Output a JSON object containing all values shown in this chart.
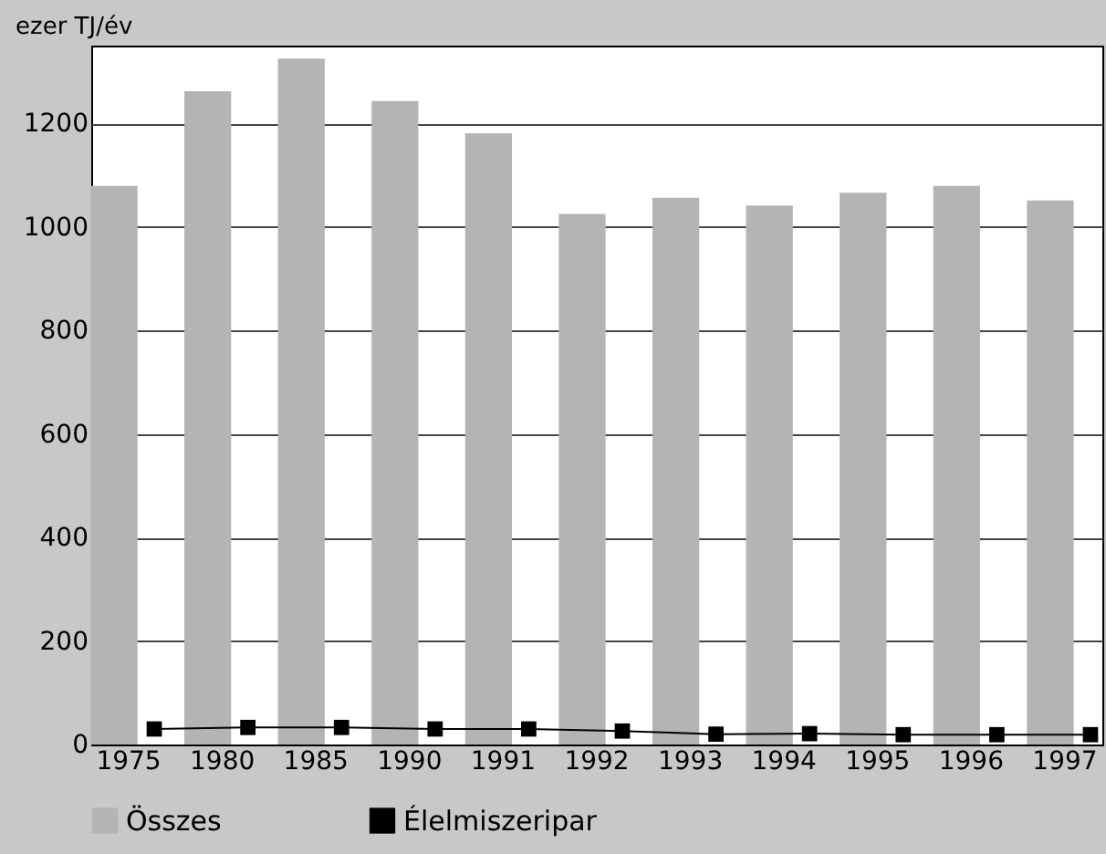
{
  "chart_data": {
    "type": "bar",
    "ylabel": "ezer TJ/év",
    "categories": [
      "1975",
      "1980",
      "1985",
      "1990",
      "1991",
      "1992",
      "1993",
      "1994",
      "1995",
      "1996",
      "1997"
    ],
    "series": [
      {
        "name": "Összes",
        "color": "#b4b4b4",
        "values": [
          1079,
          1262,
          1325,
          1243,
          1181,
          1025,
          1056,
          1041,
          1066,
          1079,
          1051
        ]
      },
      {
        "name": "Élelmiszeripar",
        "type": "line",
        "color": "#000000",
        "values": [
          30,
          33,
          33,
          30,
          30,
          26,
          20,
          21,
          19,
          19,
          19
        ]
      }
    ],
    "ylim": [
      0,
      1350
    ],
    "yticks": [
      0,
      200,
      400,
      600,
      800,
      1000,
      1200
    ],
    "grid": "y",
    "legend": "bottom",
    "marker": "square",
    "line_style": "solid"
  }
}
